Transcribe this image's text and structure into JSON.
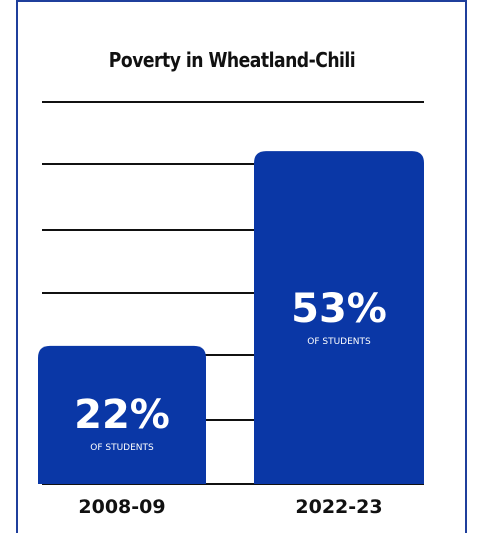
{
  "colors": {
    "bar": "#0a37a6",
    "frame": "#1f3f9c",
    "gridline": "#111111",
    "text": "#111111",
    "bar_text": "#ffffff"
  },
  "chart_data": {
    "type": "bar",
    "title": "Poverty in Wheatland-Chili",
    "categories": [
      "2008-09",
      "2022-23"
    ],
    "values": [
      22,
      53
    ],
    "data_labels": [
      "22%",
      "53%"
    ],
    "data_sublabel": "OF STUDENTS",
    "xlabel": "",
    "ylabel": "",
    "ylim": [
      0,
      60
    ],
    "grid": true,
    "legend": "none"
  }
}
